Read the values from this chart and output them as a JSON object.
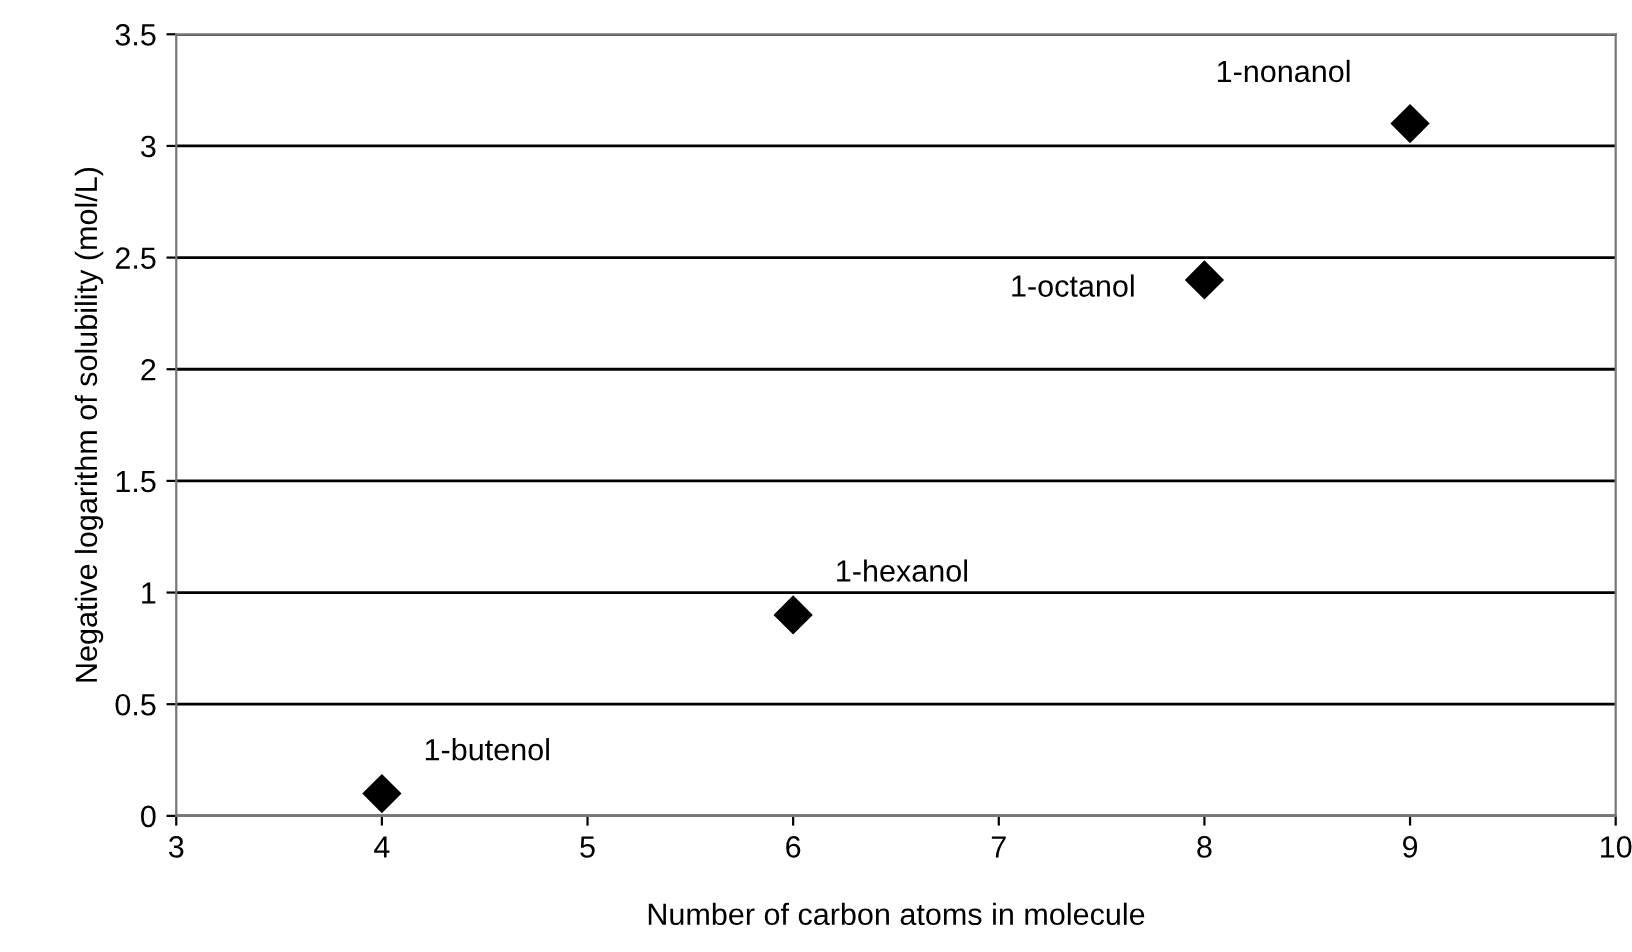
{
  "chart_data": {
    "type": "scatter",
    "xlabel": "Number of carbon atoms in molecule",
    "ylabel": "Negative logarithm of solubility (mol/L)",
    "x": [
      4,
      6,
      8,
      9
    ],
    "values": [
      0.1,
      0.9,
      2.4,
      3.1
    ],
    "color": "#000000",
    "marker": "diamond",
    "xlim": [
      3,
      10
    ],
    "xticks": [
      3,
      4,
      5,
      6,
      7,
      8,
      9,
      10
    ],
    "ylim": [
      0,
      3.5
    ],
    "yticks": [
      0,
      0.5,
      1,
      1.5,
      2,
      2.5,
      3,
      3.5
    ],
    "grid": "y",
    "annotations": [
      {
        "text": "1-butenol",
        "x": 4,
        "y": 0.1
      },
      {
        "text": "1-hexanol",
        "x": 6,
        "y": 0.9
      },
      {
        "text": "1-octanol",
        "x": 8,
        "y": 2.4
      },
      {
        "text": "1-nonanol",
        "x": 9,
        "y": 3.1
      }
    ]
  }
}
